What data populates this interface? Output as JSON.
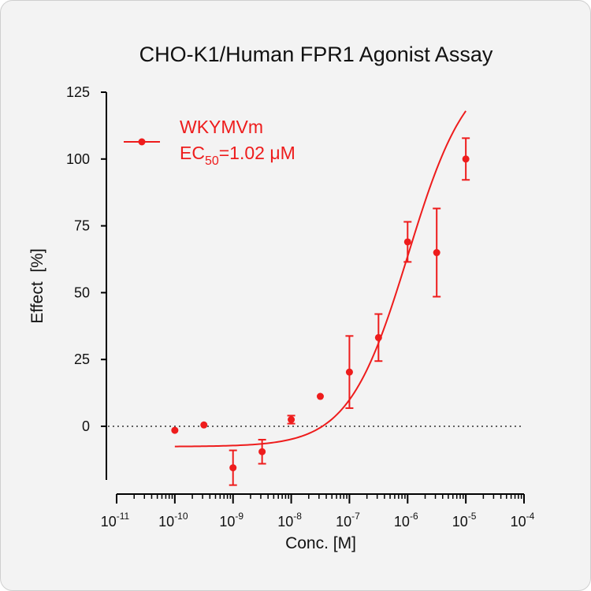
{
  "chart_data": {
    "type": "scatter",
    "title": "CHO-K1/Human FPR1 Agonist Assay",
    "xlabel": "Conc. [M]",
    "ylabel": "Effect  [%]",
    "xscale": "log",
    "xlim": [
      1e-11,
      0.0001
    ],
    "ylim": [
      -20,
      125
    ],
    "xticks": [
      {
        "base": "10",
        "exp": "-11",
        "value": 1e-11
      },
      {
        "base": "10",
        "exp": "-10",
        "value": 1e-10
      },
      {
        "base": "10",
        "exp": "-9",
        "value": 1e-09
      },
      {
        "base": "10",
        "exp": "-8",
        "value": 1e-08
      },
      {
        "base": "10",
        "exp": "-7",
        "value": 1e-07
      },
      {
        "base": "10",
        "exp": "-6",
        "value": 1e-06
      },
      {
        "base": "10",
        "exp": "-5",
        "value": 1e-05
      },
      {
        "base": "10",
        "exp": "-4",
        "value": 0.0001
      }
    ],
    "yticks": [
      {
        "label": "125",
        "value": 125
      },
      {
        "label": "100",
        "value": 100
      },
      {
        "label": "75",
        "value": 75
      },
      {
        "label": "50",
        "value": 50
      },
      {
        "label": "25",
        "value": 25
      },
      {
        "label": "0",
        "value": 0
      }
    ],
    "baseline": {
      "y": 0,
      "style": "dotted"
    },
    "color": "#ee1c1c",
    "series": [
      {
        "name": "WKYMVm",
        "points": [
          {
            "x": 1e-10,
            "y": -1.5
          },
          {
            "x": 3.16e-10,
            "y": 0.5
          },
          {
            "x": 1e-09,
            "y": -15.5,
            "err": 6.5
          },
          {
            "x": 3.16e-09,
            "y": -9.5,
            "err": 4.5
          },
          {
            "x": 1e-08,
            "y": 2.5,
            "err": 1.5
          },
          {
            "x": 3.16e-08,
            "y": 11.2
          },
          {
            "x": 1e-07,
            "y": 20.3,
            "err": 13.5
          },
          {
            "x": 3.16e-07,
            "y": 33.2,
            "err": 8.8
          },
          {
            "x": 1e-06,
            "y": 69.0,
            "err": 7.5
          },
          {
            "x": 3.16e-06,
            "y": 65.0,
            "err": 16.5
          },
          {
            "x": 1e-05,
            "y": 100.0,
            "err": 7.8
          }
        ],
        "fit": {
          "bottom": -7.6,
          "top": 136,
          "ec50": 1.02e-06,
          "hill": 0.85,
          "x_range": [
            1e-10,
            1e-05
          ]
        }
      }
    ],
    "legend": {
      "position": "top-left",
      "name": "WKYMVm",
      "ec50_prefix": "EC",
      "ec50_subscript": "50",
      "ec50_value": "=1.02 μM"
    }
  }
}
